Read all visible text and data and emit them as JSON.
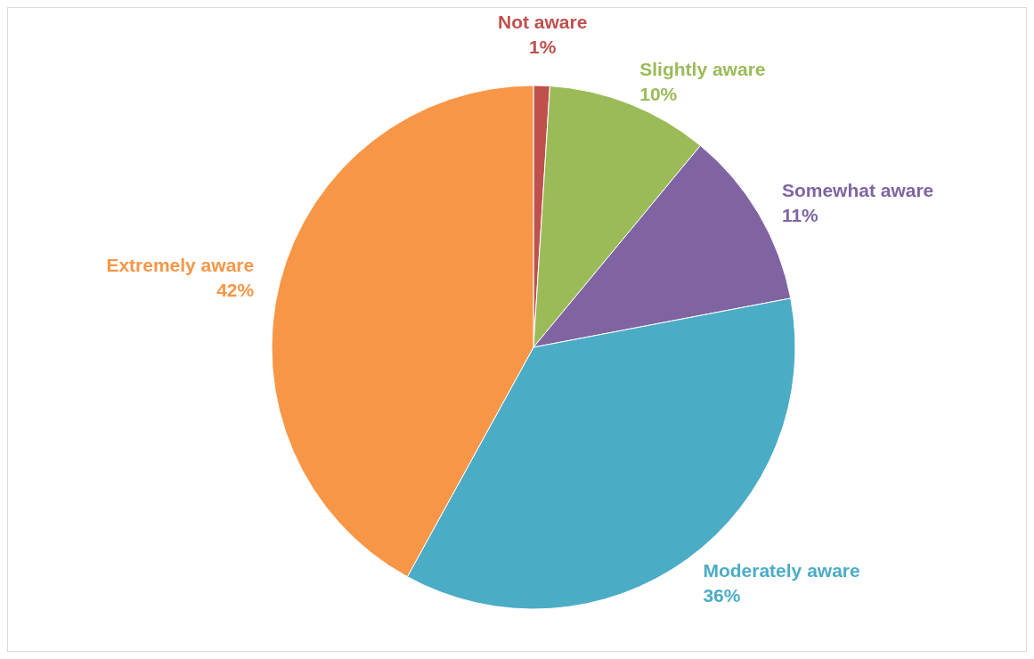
{
  "chart_data": {
    "type": "pie",
    "categories": [
      "Not aware",
      "Slightly aware",
      "Somewhat aware",
      "Moderately aware",
      "Extremely aware"
    ],
    "values": [
      1,
      10,
      11,
      36,
      42
    ],
    "value_labels": [
      "1%",
      "10%",
      "11%",
      "36%",
      "42%"
    ],
    "colors": [
      "#c0504d",
      "#9bbb59",
      "#8064a2",
      "#4bacc6",
      "#f79646"
    ],
    "legend": false
  }
}
